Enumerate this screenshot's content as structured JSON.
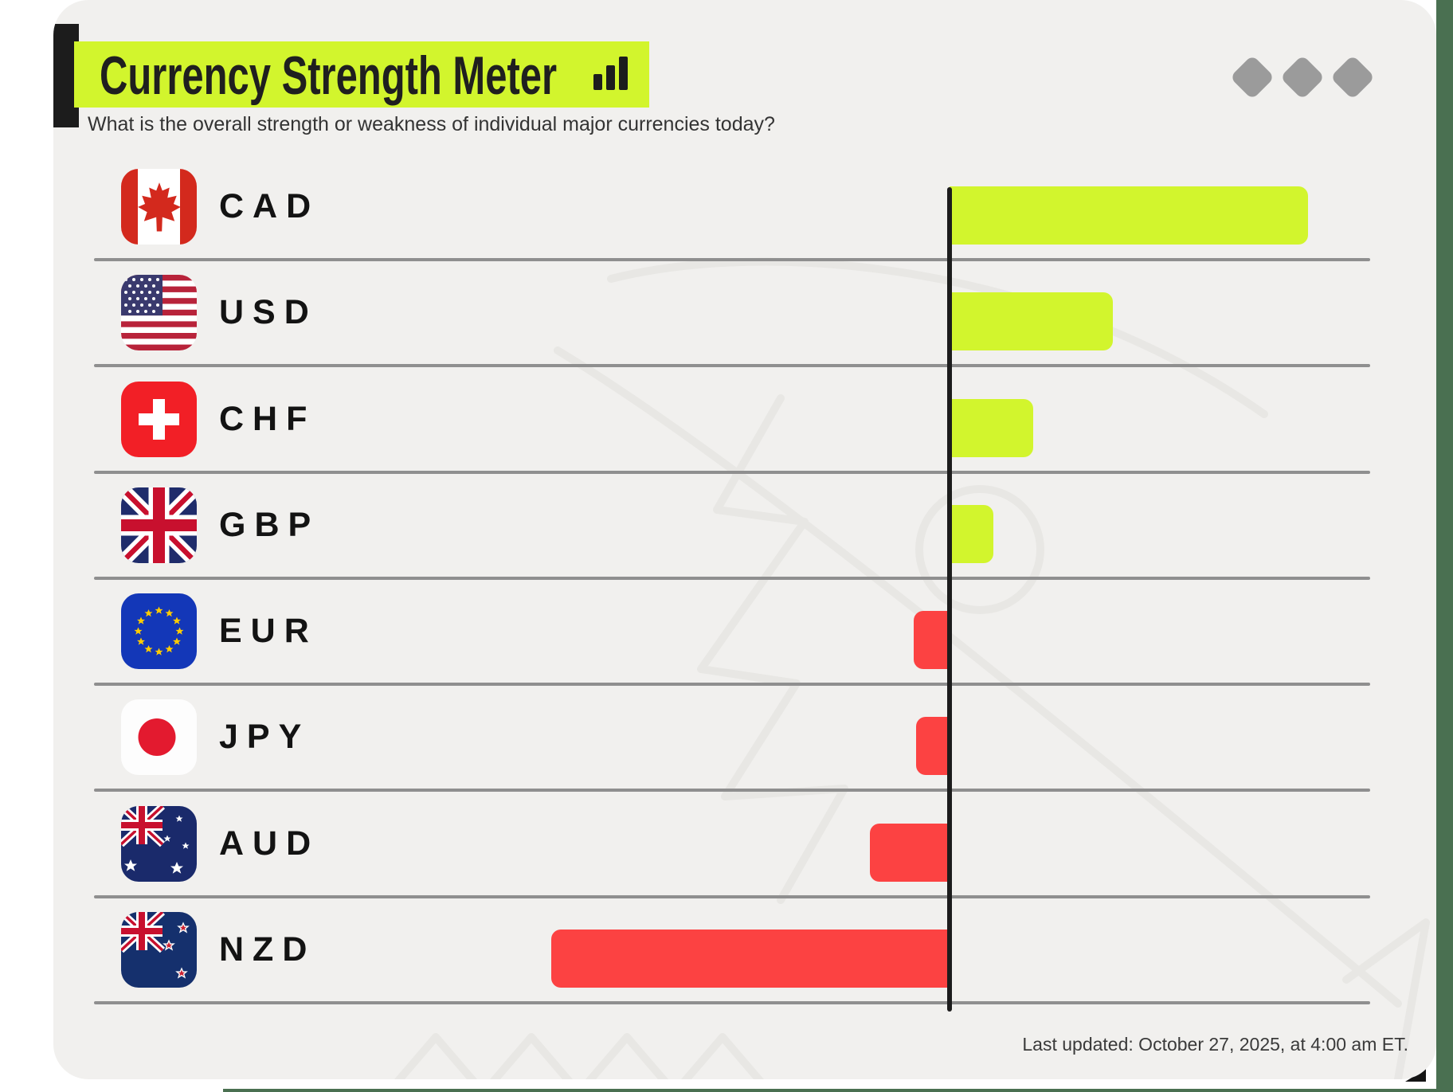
{
  "header": {
    "title": "Currency Strength Meter",
    "subtitle": "What is the overall strength or weakness of individual major currencies today?"
  },
  "footer": {
    "last_updated": "Last updated: October 27, 2025, at 4:00 am ET."
  },
  "theme": {
    "positive_color": "#d2f52d",
    "negative_color": "#fc4242",
    "title_highlight_color": "#d2f52d",
    "card_background": "#f1f0ee",
    "page_edge_color": "#4a7051",
    "axis_color": "#1c1c1c",
    "separator_color": "#8f8f8f",
    "diamond_color": "#9b9b9b"
  },
  "chart_data": {
    "type": "bar",
    "orientation": "horizontal",
    "title": "Currency Strength Meter",
    "categories": [
      "CAD",
      "USD",
      "CHF",
      "GBP",
      "EUR",
      "JPY",
      "AUD",
      "NZD"
    ],
    "values": [
      9.0,
      4.1,
      2.1,
      1.1,
      -0.9,
      -0.85,
      -2.0,
      -10.0
    ],
    "xlim": [
      -12,
      12.5
    ],
    "grid": "row-separators-only",
    "legend": "none",
    "zero_axis": true
  },
  "currencies": [
    {
      "code": "CAD",
      "flag": "canada",
      "value": 9.0
    },
    {
      "code": "USD",
      "flag": "usa",
      "value": 4.1
    },
    {
      "code": "CHF",
      "flag": "switzerland",
      "value": 2.1
    },
    {
      "code": "GBP",
      "flag": "uk",
      "value": 1.1
    },
    {
      "code": "EUR",
      "flag": "eu",
      "value": -0.9
    },
    {
      "code": "JPY",
      "flag": "japan",
      "value": -0.85
    },
    {
      "code": "AUD",
      "flag": "australia",
      "value": -2.0
    },
    {
      "code": "NZD",
      "flag": "new-zealand",
      "value": -10.0
    }
  ]
}
